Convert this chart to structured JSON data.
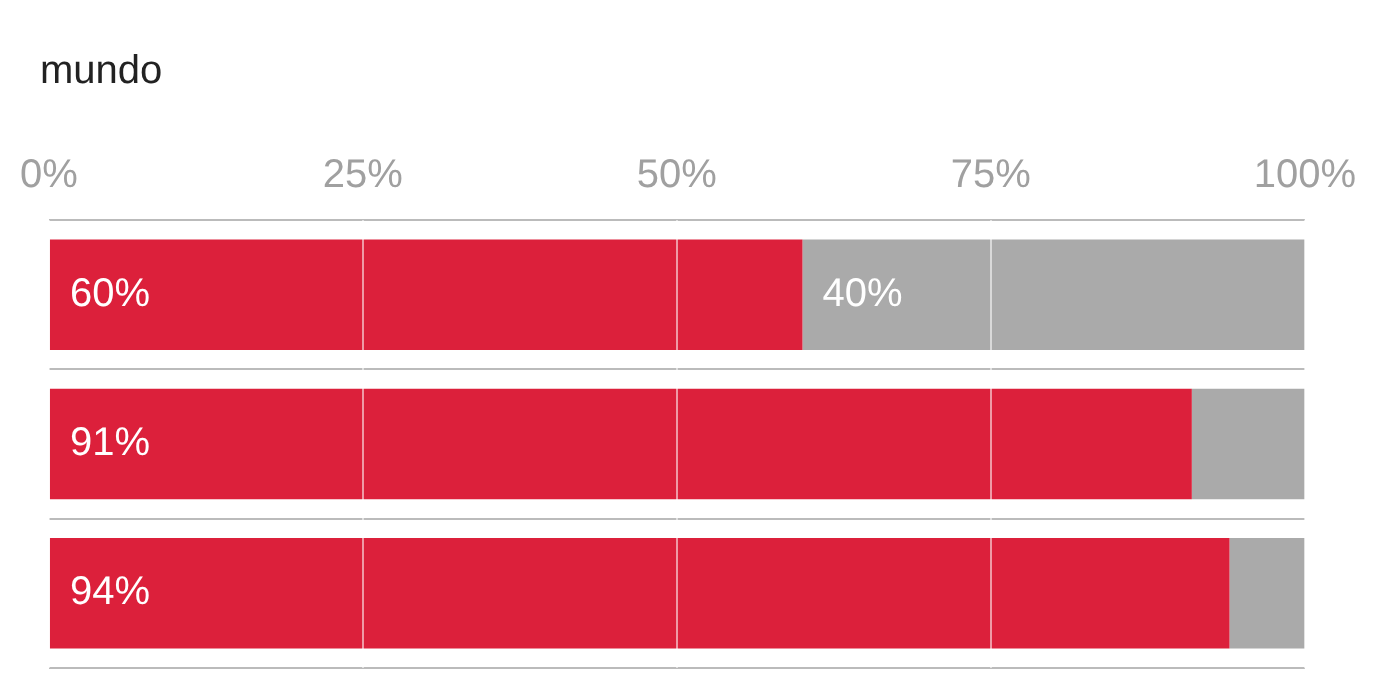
{
  "chart_data": {
    "type": "bar",
    "orientation": "horizontal",
    "stacked": true,
    "title": "mundo",
    "categories": [
      null,
      null,
      null
    ],
    "series": [
      {
        "color": "#dc203b",
        "values": [
          60,
          91,
          94
        ],
        "value_labels": [
          "60%",
          "91%",
          "94%"
        ]
      },
      {
        "color": "#aaaaaa",
        "values": [
          40,
          9,
          6
        ],
        "value_labels": [
          "40%",
          null,
          null
        ]
      }
    ],
    "xlim": [
      0,
      100
    ],
    "xticks": [
      {
        "value": 0,
        "label": "0%"
      },
      {
        "value": 25,
        "label": "25%"
      },
      {
        "value": 50,
        "label": "50%"
      },
      {
        "value": 75,
        "label": "75%"
      },
      {
        "value": 100,
        "label": "100%"
      }
    ],
    "grid": true,
    "legend": false
  }
}
